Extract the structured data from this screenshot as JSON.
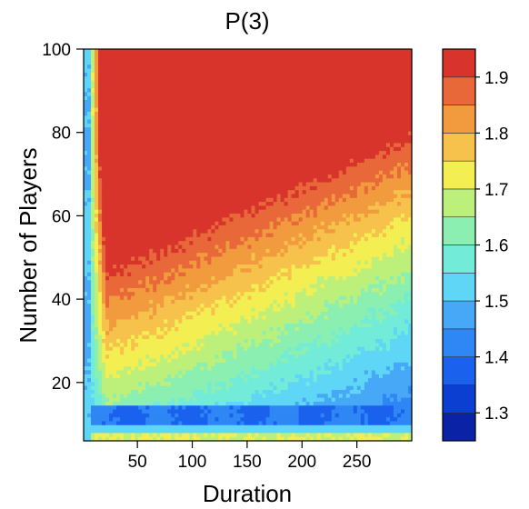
{
  "chart_data": {
    "type": "heatmap",
    "title": "P(3)",
    "xlabel": "Duration",
    "ylabel": "Number of Players",
    "xlim": [
      1,
      300
    ],
    "ylim": [
      6,
      100
    ],
    "x_ticks": [
      50,
      100,
      150,
      200,
      250
    ],
    "y_ticks": [
      20,
      40,
      60,
      80,
      100
    ],
    "colorbar": {
      "range": [
        1.25,
        1.95
      ],
      "ticks": [
        1.3,
        1.4,
        1.5,
        1.6,
        1.7,
        1.8,
        1.9
      ],
      "levels": [
        {
          "from": 1.25,
          "to": 1.3,
          "color": "#0a22a6"
        },
        {
          "from": 1.3,
          "to": 1.35,
          "color": "#0b3fd2"
        },
        {
          "from": 1.35,
          "to": 1.4,
          "color": "#1a62ee"
        },
        {
          "from": 1.4,
          "to": 1.45,
          "color": "#2f86f5"
        },
        {
          "from": 1.45,
          "to": 1.5,
          "color": "#46a8f7"
        },
        {
          "from": 1.5,
          "to": 1.55,
          "color": "#5fd6f6"
        },
        {
          "from": 1.55,
          "to": 1.6,
          "color": "#72ecd8"
        },
        {
          "from": 1.6,
          "to": 1.65,
          "color": "#8aefb0"
        },
        {
          "from": 1.65,
          "to": 1.7,
          "color": "#bdf07a"
        },
        {
          "from": 1.7,
          "to": 1.75,
          "color": "#f3ee52"
        },
        {
          "from": 1.75,
          "to": 1.8,
          "color": "#f6c24c"
        },
        {
          "from": 1.8,
          "to": 1.85,
          "color": "#f19a3e"
        },
        {
          "from": 1.85,
          "to": 1.9,
          "color": "#e8683a"
        },
        {
          "from": 1.9,
          "to": 1.95,
          "color": "#d9342c"
        }
      ]
    },
    "grid": false,
    "legend": "colorbar-right",
    "value_field_description": "P(3) as function of Duration (x) and Number of Players (y)",
    "sample_values": [
      {
        "duration": 5,
        "players": 50,
        "value": 1.52
      },
      {
        "duration": 60,
        "players": 95,
        "value": 1.92
      },
      {
        "duration": 60,
        "players": 70,
        "value": 1.86
      },
      {
        "duration": 60,
        "players": 45,
        "value": 1.78
      },
      {
        "duration": 150,
        "players": 90,
        "value": 1.82
      },
      {
        "duration": 150,
        "players": 60,
        "value": 1.72
      },
      {
        "duration": 150,
        "players": 30,
        "value": 1.62
      },
      {
        "duration": 250,
        "players": 90,
        "value": 1.76
      },
      {
        "duration": 250,
        "players": 50,
        "value": 1.63
      },
      {
        "duration": 250,
        "players": 25,
        "value": 1.52
      },
      {
        "duration": 150,
        "players": 12,
        "value": 1.38
      },
      {
        "duration": 150,
        "players": 7,
        "value": 1.68
      }
    ]
  }
}
